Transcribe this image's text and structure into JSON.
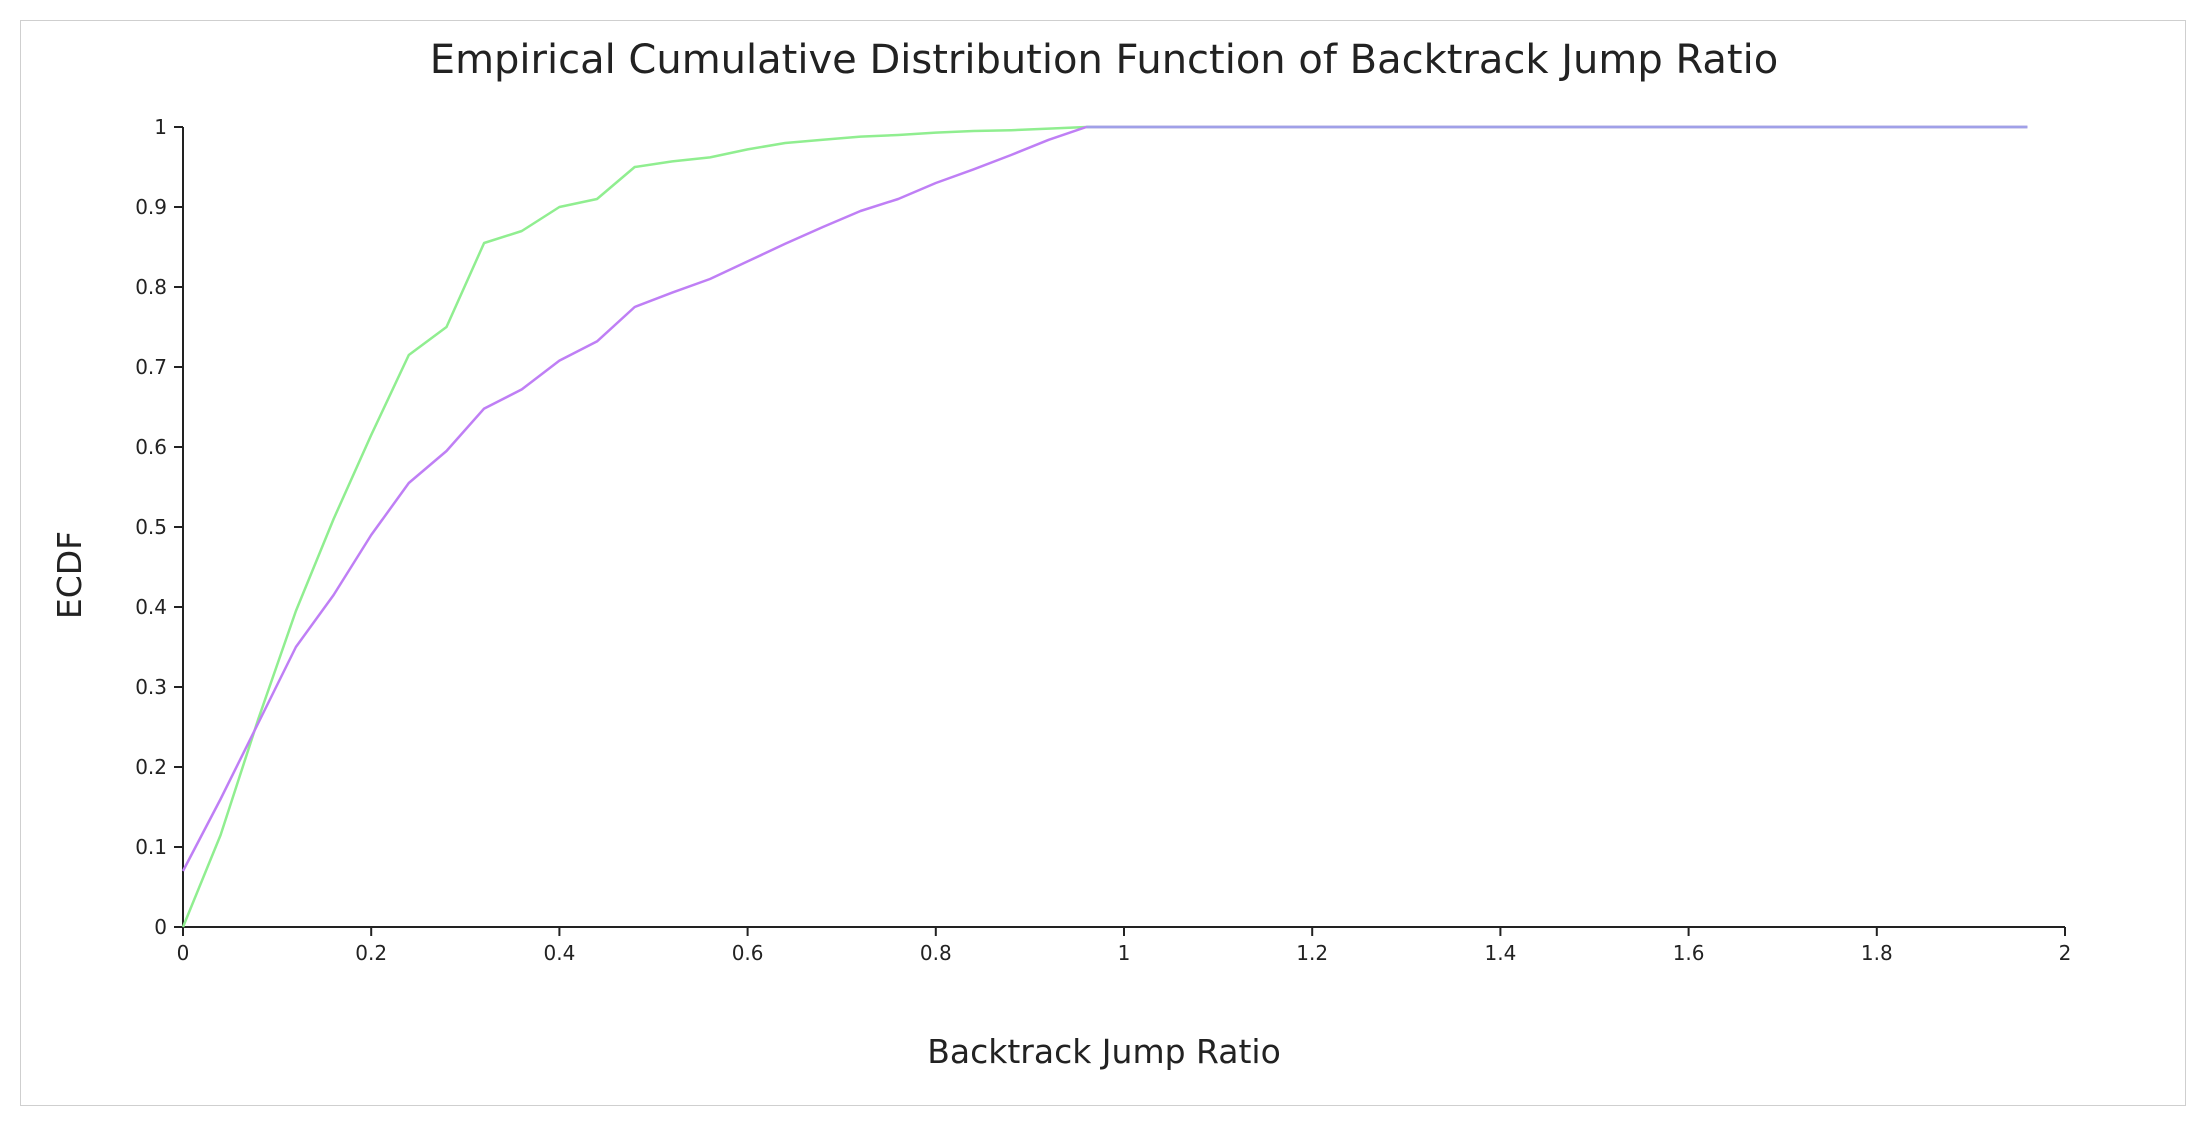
{
  "chart_data": {
    "type": "line",
    "title": "Empirical Cumulative Distribution Function of Backtrack Jump Ratio",
    "xlabel": "Backtrack Jump Ratio",
    "ylabel": "ECDF",
    "xlim": [
      0,
      2
    ],
    "ylim": [
      0,
      1
    ],
    "x_ticks": [
      "0",
      "0.2",
      "0.4",
      "0.6",
      "0.8",
      "1",
      "1.2",
      "1.4",
      "1.6",
      "1.8",
      "2"
    ],
    "y_ticks": [
      "0",
      "0.1",
      "0.2",
      "0.3",
      "0.4",
      "0.5",
      "0.6",
      "0.7",
      "0.8",
      "0.9",
      "1"
    ],
    "grid": false,
    "legend": "none",
    "series": [
      {
        "color": "#90ee90",
        "points": [
          [
            0,
            0.0
          ],
          [
            0.04,
            0.115
          ],
          [
            0.08,
            0.26
          ],
          [
            0.12,
            0.395
          ],
          [
            0.16,
            0.51
          ],
          [
            0.2,
            0.615
          ],
          [
            0.24,
            0.715
          ],
          [
            0.28,
            0.75
          ],
          [
            0.32,
            0.855
          ],
          [
            0.36,
            0.87
          ],
          [
            0.4,
            0.9
          ],
          [
            0.44,
            0.91
          ],
          [
            0.48,
            0.95
          ],
          [
            0.52,
            0.957
          ],
          [
            0.56,
            0.962
          ],
          [
            0.6,
            0.972
          ],
          [
            0.64,
            0.98
          ],
          [
            0.68,
            0.984
          ],
          [
            0.72,
            0.988
          ],
          [
            0.76,
            0.99
          ],
          [
            0.8,
            0.993
          ],
          [
            0.84,
            0.995
          ],
          [
            0.88,
            0.996
          ],
          [
            0.92,
            0.998
          ],
          [
            0.96,
            1.0
          ],
          [
            1.0,
            1.0
          ],
          [
            1.96,
            1.0
          ]
        ]
      },
      {
        "color": "#bf7ff5",
        "points": [
          [
            0,
            0.07
          ],
          [
            0.04,
            0.16
          ],
          [
            0.08,
            0.255
          ],
          [
            0.12,
            0.35
          ],
          [
            0.16,
            0.415
          ],
          [
            0.2,
            0.49
          ],
          [
            0.24,
            0.555
          ],
          [
            0.28,
            0.595
          ],
          [
            0.32,
            0.648
          ],
          [
            0.36,
            0.672
          ],
          [
            0.4,
            0.708
          ],
          [
            0.44,
            0.732
          ],
          [
            0.48,
            0.775
          ],
          [
            0.52,
            0.793
          ],
          [
            0.56,
            0.81
          ],
          [
            0.6,
            0.832
          ],
          [
            0.64,
            0.854
          ],
          [
            0.68,
            0.875
          ],
          [
            0.72,
            0.895
          ],
          [
            0.76,
            0.91
          ],
          [
            0.8,
            0.93
          ],
          [
            0.84,
            0.947
          ],
          [
            0.88,
            0.965
          ],
          [
            0.92,
            0.984
          ],
          [
            0.96,
            1.0
          ],
          [
            1.0,
            1.0
          ],
          [
            1.96,
            1.0
          ]
        ]
      },
      {
        "color": "#a0a0e8",
        "points": [
          [
            0.96,
            1.0
          ],
          [
            1.96,
            1.0
          ]
        ]
      }
    ]
  }
}
